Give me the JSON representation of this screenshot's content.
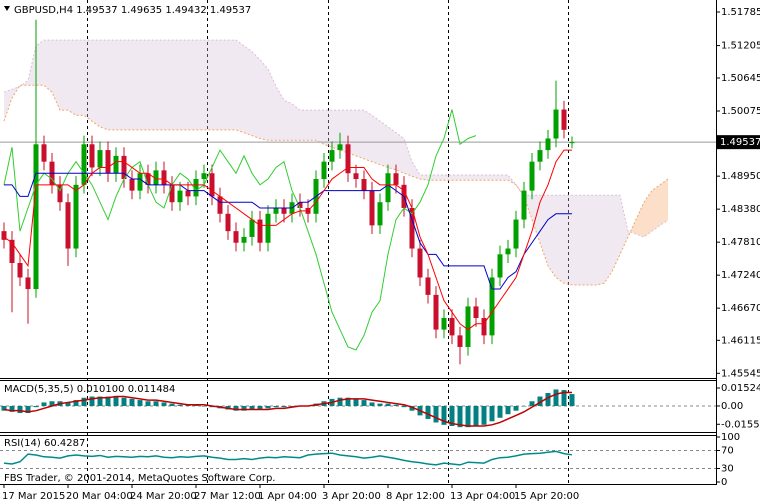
{
  "chart_data": {
    "type": "candlestick",
    "symbol": "GBPUSD,H4",
    "footer": "FBS Trader, © 2001-2014, MetaQuotes Software Corp.",
    "bull_color": "#00a000",
    "bear_color": "#c8102e",
    "ylim": [
      1.45464,
      1.51992
    ],
    "yticks": [
      1.51785,
      1.51205,
      1.50645,
      1.50075,
      {
        "value": 1.4895,
        "label": "1.48950"
      },
      {
        "value": 1.4838,
        "label": "1.48380"
      },
      {
        "value": 1.4781,
        "label": "1.47810"
      },
      {
        "value": 1.4724,
        "label": "1.47240"
      },
      {
        "value": 1.4667,
        "label": "1.46670"
      },
      1.46115,
      1.45545
    ],
    "categories": [
      "17 Mar 2015",
      null,
      null,
      null,
      null,
      null,
      null,
      null,
      "20 Mar 04:00",
      null,
      null,
      null,
      null,
      null,
      null,
      null,
      "24 Mar 20:00",
      null,
      null,
      null,
      null,
      null,
      null,
      null,
      "27 Mar 12:00",
      null,
      null,
      null,
      null,
      null,
      null,
      null,
      "1 Apr 04:00",
      null,
      null,
      null,
      null,
      null,
      null,
      null,
      "3 Apr 20:00",
      null,
      null,
      null,
      null,
      null,
      null,
      null,
      "8 Apr 12:00",
      null,
      null,
      null,
      null,
      null,
      null,
      null,
      "13 Apr 04:00",
      null,
      null,
      null,
      null,
      null,
      null,
      null,
      "15 Apr 20:00",
      null,
      null,
      null,
      null,
      null,
      null,
      null
    ],
    "candles": [
      [
        1.48,
        1.4815,
        1.477,
        1.4785
      ],
      [
        1.4785,
        1.48,
        1.466,
        1.4745
      ],
      [
        1.4745,
        1.476,
        1.4705,
        1.472
      ],
      [
        1.472,
        1.4735,
        1.464,
        1.47
      ],
      [
        1.47,
        1.5165,
        1.4685,
        1.495
      ],
      [
        1.495,
        1.4965,
        1.4905,
        1.492
      ],
      [
        1.492,
        1.4935,
        1.4865,
        1.488
      ],
      [
        1.488,
        1.4895,
        1.4835,
        1.485
      ],
      [
        1.485,
        1.4865,
        1.474,
        1.477
      ],
      [
        1.477,
        1.4895,
        1.4755,
        1.488
      ],
      [
        1.488,
        1.4965,
        1.4865,
        1.495
      ],
      [
        1.495,
        1.4965,
        1.4895,
        1.491
      ],
      [
        1.491,
        1.4955,
        1.4895,
        1.494
      ],
      [
        1.494,
        1.4955,
        1.4885,
        1.49
      ],
      [
        1.49,
        1.4945,
        1.4885,
        1.493
      ],
      [
        1.493,
        1.4945,
        1.4875,
        1.489
      ],
      [
        1.489,
        1.4905,
        1.4855,
        1.487
      ],
      [
        1.487,
        1.4915,
        1.4855,
        1.49
      ],
      [
        1.49,
        1.4915,
        1.4865,
        1.488
      ],
      [
        1.488,
        1.492,
        1.4865,
        1.4905
      ],
      [
        1.4905,
        1.492,
        1.4865,
        1.488
      ],
      [
        1.488,
        1.4895,
        1.4835,
        1.485
      ],
      [
        1.485,
        1.4885,
        1.4835,
        1.487
      ],
      [
        1.487,
        1.4885,
        1.4845,
        1.486
      ],
      [
        1.486,
        1.4905,
        1.4845,
        1.489
      ],
      [
        1.489,
        1.4915,
        1.4875,
        1.49
      ],
      [
        1.49,
        1.4915,
        1.4845,
        1.486
      ],
      [
        1.486,
        1.4875,
        1.4815,
        1.483
      ],
      [
        1.483,
        1.4845,
        1.4785,
        1.48
      ],
      [
        1.48,
        1.4815,
        1.4765,
        1.478
      ],
      [
        1.478,
        1.4805,
        1.4765,
        1.479
      ],
      [
        1.479,
        1.4835,
        1.4775,
        1.482
      ],
      [
        1.482,
        1.4835,
        1.4765,
        1.478
      ],
      [
        1.478,
        1.4845,
        1.4765,
        1.483
      ],
      [
        1.483,
        1.4855,
        1.4815,
        1.484
      ],
      [
        1.484,
        1.4855,
        1.4815,
        1.483
      ],
      [
        1.483,
        1.4865,
        1.4815,
        1.485
      ],
      [
        1.485,
        1.4865,
        1.4825,
        1.484
      ],
      [
        1.484,
        1.4855,
        1.4815,
        1.483
      ],
      [
        1.483,
        1.4905,
        1.4815,
        1.489
      ],
      [
        1.489,
        1.4935,
        1.4875,
        1.492
      ],
      [
        1.492,
        1.4955,
        1.4905,
        1.494
      ],
      [
        1.494,
        1.497,
        1.4925,
        1.495
      ],
      [
        1.495,
        1.4965,
        1.4885,
        1.49
      ],
      [
        1.49,
        1.4915,
        1.4875,
        1.489
      ],
      [
        1.489,
        1.4905,
        1.4855,
        1.487
      ],
      [
        1.487,
        1.4885,
        1.4795,
        1.481
      ],
      [
        1.481,
        1.4865,
        1.4795,
        1.485
      ],
      [
        1.485,
        1.4915,
        1.4835,
        1.49
      ],
      [
        1.49,
        1.4915,
        1.4865,
        1.488
      ],
      [
        1.488,
        1.4895,
        1.4825,
        1.484
      ],
      [
        1.484,
        1.4855,
        1.4755,
        1.477
      ],
      [
        1.477,
        1.4785,
        1.4705,
        1.472
      ],
      [
        1.472,
        1.4735,
        1.4675,
        1.469
      ],
      [
        1.469,
        1.4705,
        1.4615,
        1.463
      ],
      [
        1.463,
        1.4665,
        1.4615,
        1.465
      ],
      [
        1.465,
        1.4665,
        1.4605,
        1.462
      ],
      [
        1.462,
        1.4635,
        1.457,
        1.46
      ],
      [
        1.46,
        1.4685,
        1.4585,
        1.467
      ],
      [
        1.467,
        1.4685,
        1.4635,
        1.465
      ],
      [
        1.465,
        1.4665,
        1.4605,
        1.462
      ],
      [
        1.462,
        1.4735,
        1.4605,
        1.472
      ],
      [
        1.472,
        1.4775,
        1.4705,
        1.476
      ],
      [
        1.476,
        1.4785,
        1.4745,
        1.477
      ],
      [
        1.477,
        1.4835,
        1.4755,
        1.482
      ],
      [
        1.482,
        1.4885,
        1.4805,
        1.487
      ],
      [
        1.487,
        1.4935,
        1.4855,
        1.492
      ],
      [
        1.492,
        1.4955,
        1.4905,
        1.494
      ],
      [
        1.494,
        1.4975,
        1.4925,
        1.496
      ],
      [
        1.496,
        1.506,
        1.4945,
        1.501
      ],
      [
        1.501,
        1.5025,
        1.496,
        1.4975
      ],
      [
        1.49537,
        1.49635,
        1.49432,
        1.49537
      ]
    ],
    "ichimoku": {
      "tenkan": {
        "color": "#ff0000",
        "values": [
          1.479,
          1.478,
          1.476,
          1.474,
          1.488,
          1.488,
          1.488,
          1.488,
          1.488,
          1.487,
          1.488,
          1.49,
          1.491,
          1.491,
          1.492,
          1.492,
          1.491,
          1.49,
          1.49,
          1.489,
          1.489,
          1.488,
          1.488,
          1.488,
          1.488,
          1.488,
          1.487,
          1.486,
          1.485,
          1.484,
          1.483,
          1.482,
          1.481,
          1.481,
          1.481,
          1.482,
          1.483,
          1.4835,
          1.4835,
          1.485,
          1.487,
          1.489,
          1.49,
          1.491,
          1.491,
          1.491,
          1.489,
          1.488,
          1.488,
          1.488,
          1.487,
          1.484,
          1.479,
          1.476,
          1.472,
          1.468,
          1.466,
          1.464,
          1.463,
          1.464,
          1.464,
          1.466,
          1.468,
          1.47,
          1.472,
          1.476,
          1.48,
          1.485,
          1.488,
          1.492,
          1.494,
          1.494
        ]
      },
      "kijun": {
        "color": "#0000cd",
        "values": [
          1.488,
          1.488,
          1.486,
          1.486,
          1.49,
          1.49,
          1.49,
          1.49,
          1.49,
          1.49,
          1.49,
          1.49,
          1.49,
          1.49,
          1.49,
          1.49,
          1.489,
          1.489,
          1.488,
          1.488,
          1.488,
          1.488,
          1.488,
          1.487,
          1.487,
          1.487,
          1.486,
          1.485,
          1.485,
          1.485,
          1.485,
          1.485,
          1.484,
          1.484,
          1.484,
          1.484,
          1.484,
          1.485,
          1.485,
          1.486,
          1.487,
          1.487,
          1.487,
          1.487,
          1.487,
          1.487,
          1.487,
          1.487,
          1.488,
          1.487,
          1.486,
          1.482,
          1.478,
          1.476,
          1.476,
          1.474,
          1.474,
          1.474,
          1.474,
          1.474,
          1.474,
          1.47,
          1.47,
          1.472,
          1.473,
          1.476,
          1.478,
          1.48,
          1.482,
          1.483,
          1.483,
          1.483
        ]
      },
      "chikou": {
        "color": "#32cd32",
        "values": [
          1.488,
          1.4945,
          1.48,
          1.484,
          1.488,
          1.49,
          1.489,
          1.487,
          1.49,
          1.492,
          1.49,
          1.488,
          1.485,
          1.482,
          1.486,
          1.489,
          1.491,
          1.492,
          1.488,
          1.485,
          1.484,
          1.488,
          1.49,
          1.489,
          1.487,
          1.488,
          1.491,
          1.494,
          1.492,
          1.49,
          1.493,
          1.49,
          1.488,
          1.489,
          1.491,
          1.492,
          1.487,
          1.484,
          1.48,
          1.476,
          1.471,
          1.466,
          1.463,
          1.46,
          1.4595,
          1.462,
          1.466,
          1.468,
          1.476,
          1.482,
          1.484,
          1.483,
          1.485,
          1.488,
          1.493,
          1.496,
          1.501,
          1.495,
          1.496,
          1.4965,
          null,
          null,
          null,
          null,
          null,
          null,
          null,
          null,
          null,
          null,
          null,
          null
        ]
      },
      "span_a": {
        "color": "#f4a460",
        "values": [
          1.499,
          1.503,
          1.5052,
          1.5052,
          1.5052,
          1.5052,
          1.504,
          1.5009,
          1.5009,
          1.5,
          1.5,
          1.499,
          1.498,
          1.4975,
          1.4975,
          1.4975,
          1.4975,
          1.4975,
          1.4975,
          1.4975,
          1.4975,
          1.4975,
          1.4975,
          1.4975,
          1.4975,
          1.4975,
          1.4975,
          1.4975,
          1.4975,
          1.4975,
          1.497,
          1.4965,
          1.496,
          1.4957,
          1.4957,
          1.4957,
          1.4957,
          1.4957,
          1.4957,
          1.4957,
          1.495,
          1.4945,
          1.494,
          1.4935,
          1.493,
          1.4925,
          1.492,
          1.4915,
          1.491,
          1.4906,
          1.49,
          1.4895,
          1.489,
          1.4888,
          1.4888,
          1.4888,
          1.4888,
          1.4888,
          1.4888,
          1.4888,
          1.4888,
          1.4888,
          1.4888,
          1.4888,
          1.488,
          1.486,
          1.482,
          1.478,
          1.474,
          1.472,
          1.471,
          1.4707,
          1.4707,
          1.4707,
          1.4707,
          1.471,
          1.473,
          1.476,
          1.479,
          1.482,
          1.485,
          1.487,
          1.488,
          1.489
        ]
      },
      "span_b": {
        "color": "#d8bfd8",
        "values": [
          1.504,
          1.5045,
          1.505,
          1.506,
          1.512,
          1.513,
          1.513,
          1.513,
          1.513,
          1.513,
          1.513,
          1.513,
          1.513,
          1.513,
          1.513,
          1.513,
          1.513,
          1.513,
          1.513,
          1.513,
          1.513,
          1.513,
          1.513,
          1.513,
          1.513,
          1.513,
          1.513,
          1.513,
          1.513,
          1.513,
          1.512,
          1.511,
          1.5096,
          1.508,
          1.505,
          1.5026,
          1.502,
          1.5009,
          1.5009,
          1.5009,
          1.5009,
          1.5009,
          1.5009,
          1.5009,
          1.5009,
          1.5009,
          1.5,
          1.499,
          1.498,
          1.497,
          1.496,
          1.492,
          1.4897,
          1.4897,
          1.4897,
          1.4897,
          1.4897,
          1.4897,
          1.4897,
          1.4897,
          1.4897,
          1.4897,
          1.4897,
          1.4897,
          1.488,
          1.4862,
          1.4862,
          1.4862,
          1.4862,
          1.4862,
          1.4862,
          1.4862,
          1.4862,
          1.4862,
          1.4862,
          1.4862,
          1.4862,
          1.4862,
          1.48,
          1.4795,
          1.479,
          1.48,
          1.481,
          1.4819
        ]
      }
    },
    "macd": {
      "label": "MACD(5,35,5)",
      "current": [
        {
          "value": 0.0101,
          "label": "0.010100"
        },
        0.011484
      ],
      "ylim": [
        -0.0221,
        0.0212
      ],
      "yticks": [
        0.015241,
        {
          "value": 0,
          "label": "0.00"
        },
        -0.015538
      ],
      "histogram": {
        "color": "#008080",
        "values": [
          -0.004,
          -0.005,
          -0.006,
          -0.006,
          -0.001,
          0.003,
          0.004,
          0.004,
          0.003,
          0.005,
          0.007,
          0.008,
          0.008,
          0.008,
          0.008,
          0.007,
          0.006,
          0.005,
          0.004,
          0.004,
          0.003,
          0.002,
          0.001,
          0.001,
          0.001,
          0,
          -0.001,
          -0.002,
          -0.003,
          -0.004,
          -0.004,
          -0.003,
          -0.003,
          -0.002,
          -0.001,
          -0.001,
          0,
          0,
          0,
          0.002,
          0.004,
          0.006,
          0.007,
          0.007,
          0.006,
          0.005,
          0.003,
          0.002,
          0.002,
          0.001,
          -0.001,
          -0.004,
          -0.008,
          -0.011,
          -0.014,
          -0.016,
          -0.017,
          -0.018,
          -0.018,
          -0.017,
          -0.016,
          -0.013,
          -0.01,
          -0.007,
          -0.004,
          0,
          0.004,
          0.008,
          0.011,
          0.014,
          0.0135,
          0.0101
        ]
      },
      "signal": {
        "color": "#c00000",
        "values": [
          -0.003,
          -0.004,
          -0.004,
          -0.005,
          -0.004,
          -0.002,
          0,
          0.002,
          0.003,
          0.004,
          0.005,
          0.006,
          0.007,
          0.007,
          0.008,
          0.008,
          0.007,
          0.006,
          0.005,
          0.005,
          0.004,
          0.003,
          0.002,
          0.001,
          0.001,
          0.001,
          0,
          -0.001,
          -0.002,
          -0.003,
          -0.003,
          -0.003,
          -0.003,
          -0.003,
          -0.002,
          -0.002,
          -0.001,
          0,
          0,
          0.001,
          0.002,
          0.003,
          0.005,
          0.006,
          0.006,
          0.006,
          0.005,
          0.004,
          0.003,
          0.002,
          0.001,
          -0.001,
          -0.004,
          -0.007,
          -0.01,
          -0.013,
          -0.015,
          -0.016,
          -0.017,
          -0.017,
          -0.017,
          -0.016,
          -0.014,
          -0.011,
          -0.008,
          -0.005,
          -0.001,
          0.003,
          0.007,
          0.01,
          0.0115,
          0.011484
        ]
      }
    },
    "rsi": {
      "label": "RSI(14)",
      "color": "#008b8b",
      "ylim": [
        0,
        100
      ],
      "yticks": [
        100,
        70,
        30,
        0
      ],
      "values": [
        42,
        40,
        45,
        62,
        60,
        56,
        55,
        53,
        58,
        60,
        58,
        57,
        59,
        55,
        57,
        56,
        55,
        57,
        56,
        58,
        55,
        54,
        56,
        55,
        57,
        58,
        55,
        53,
        50,
        50,
        52,
        50,
        53,
        55,
        54,
        56,
        55,
        54,
        60,
        62,
        63,
        64,
        60,
        58,
        56,
        53,
        55,
        58,
        55,
        52,
        48,
        45,
        43,
        40,
        38,
        42,
        40,
        38,
        44,
        43,
        42,
        50,
        54,
        55,
        58,
        62,
        63,
        64,
        66,
        68,
        63,
        60.4287
      ]
    }
  }
}
